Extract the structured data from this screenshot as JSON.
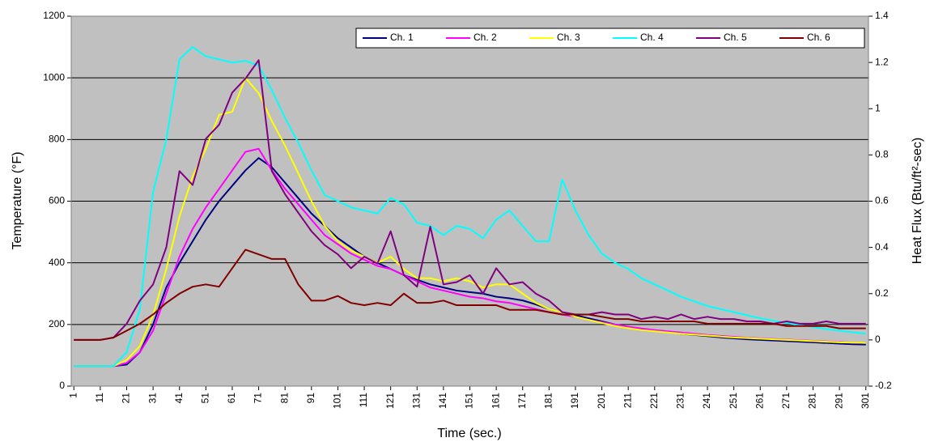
{
  "chart_data": {
    "type": "line",
    "xlabel": "Time (sec.)",
    "ylabel": "Temperature (°F)",
    "y2label": "Heat Flux (Btu/ft²-sec)",
    "x": [
      1,
      6,
      11,
      16,
      21,
      26,
      31,
      36,
      41,
      46,
      51,
      56,
      61,
      66,
      71,
      76,
      81,
      86,
      91,
      96,
      101,
      106,
      111,
      116,
      121,
      126,
      131,
      136,
      141,
      146,
      151,
      156,
      161,
      166,
      171,
      176,
      181,
      186,
      191,
      196,
      201,
      206,
      211,
      216,
      221,
      226,
      231,
      236,
      241,
      246,
      251,
      256,
      261,
      266,
      271,
      276,
      281,
      286,
      291,
      296,
      301
    ],
    "xlim": [
      0,
      302
    ],
    "xticks": [
      1,
      11,
      21,
      31,
      41,
      51,
      61,
      71,
      81,
      91,
      101,
      111,
      121,
      131,
      141,
      151,
      161,
      171,
      181,
      191,
      201,
      211,
      221,
      231,
      241,
      251,
      261,
      271,
      281,
      291,
      301
    ],
    "ylim": [
      0,
      1200
    ],
    "yticks": [
      0,
      200,
      400,
      600,
      800,
      1000,
      1200
    ],
    "y2lim": [
      -0.2,
      1.4
    ],
    "y2ticks": [
      -0.2,
      0,
      0.2,
      0.4,
      0.6,
      0.8,
      1,
      1.2,
      1.4
    ],
    "grid": true,
    "legend": "upper right",
    "series": [
      {
        "name": "Ch. 1",
        "color": "#000080",
        "values": [
          65,
          65,
          65,
          65,
          70,
          110,
          200,
          320,
          400,
          470,
          540,
          600,
          650,
          700,
          740,
          710,
          660,
          610,
          560,
          520,
          480,
          450,
          420,
          400,
          380,
          360,
          345,
          330,
          320,
          310,
          305,
          300,
          290,
          285,
          278,
          265,
          250,
          240,
          230,
          220,
          210,
          200,
          192,
          185,
          180,
          175,
          170,
          166,
          162,
          158,
          155,
          152,
          150,
          148,
          146,
          144,
          142,
          140,
          138,
          136,
          135
        ]
      },
      {
        "name": "Ch. 2",
        "color": "#ff00ff",
        "values": [
          65,
          65,
          65,
          65,
          75,
          110,
          180,
          300,
          420,
          510,
          580,
          640,
          700,
          760,
          770,
          700,
          640,
          590,
          540,
          490,
          460,
          430,
          410,
          390,
          380,
          360,
          340,
          320,
          310,
          300,
          290,
          285,
          275,
          270,
          260,
          250,
          240,
          232,
          225,
          215,
          207,
          200,
          193,
          187,
          182,
          178,
          174,
          170,
          166,
          163,
          160,
          157,
          155,
          153,
          151,
          149,
          147,
          145,
          143,
          141,
          140
        ]
      },
      {
        "name": "Ch. 3",
        "color": "#ffff00",
        "values": [
          65,
          65,
          65,
          65,
          85,
          130,
          230,
          380,
          550,
          680,
          770,
          880,
          890,
          1000,
          950,
          860,
          780,
          690,
          600,
          520,
          470,
          440,
          420,
          400,
          420,
          380,
          350,
          350,
          340,
          350,
          340,
          320,
          330,
          330,
          300,
          270,
          250,
          240,
          225,
          215,
          205,
          195,
          188,
          182,
          178,
          174,
          170,
          167,
          164,
          161,
          158,
          156,
          154,
          152,
          150,
          148,
          146,
          144,
          142,
          141,
          140
        ]
      },
      {
        "name": "Ch. 4",
        "color": "#00ffff",
        "values": [
          65,
          65,
          65,
          65,
          110,
          250,
          630,
          800,
          1060,
          1100,
          1070,
          1060,
          1050,
          1055,
          1040,
          960,
          870,
          790,
          700,
          620,
          600,
          580,
          570,
          560,
          610,
          590,
          530,
          520,
          490,
          520,
          510,
          480,
          540,
          570,
          520,
          470,
          470,
          670,
          570,
          490,
          430,
          400,
          380,
          350,
          330,
          310,
          290,
          275,
          260,
          250,
          240,
          230,
          220,
          212,
          205,
          198,
          192,
          185,
          180,
          175,
          170
        ]
      },
      {
        "name": "Ch. 5",
        "color": "#800080",
        "axis": "y2",
        "values": [
          0,
          0,
          0,
          0.01,
          0.07,
          0.17,
          0.24,
          0.4,
          0.73,
          0.67,
          0.87,
          0.93,
          1.07,
          1.13,
          1.21,
          0.73,
          0.63,
          0.55,
          0.47,
          0.41,
          0.37,
          0.31,
          0.36,
          0.33,
          0.47,
          0.28,
          0.23,
          0.49,
          0.24,
          0.25,
          0.28,
          0.2,
          0.31,
          0.24,
          0.25,
          0.2,
          0.17,
          0.12,
          0.11,
          0.11,
          0.12,
          0.11,
          0.11,
          0.09,
          0.1,
          0.09,
          0.11,
          0.09,
          0.1,
          0.09,
          0.09,
          0.08,
          0.08,
          0.07,
          0.08,
          0.07,
          0.07,
          0.08,
          0.07,
          0.07,
          0.07
        ]
      },
      {
        "name": "Ch. 6",
        "color": "#800000",
        "axis": "y2",
        "values": [
          0,
          0,
          0,
          0.01,
          0.04,
          0.07,
          0.11,
          0.16,
          0.2,
          0.23,
          0.24,
          0.23,
          0.31,
          0.39,
          0.37,
          0.35,
          0.35,
          0.24,
          0.17,
          0.17,
          0.19,
          0.16,
          0.15,
          0.16,
          0.15,
          0.2,
          0.16,
          0.16,
          0.17,
          0.15,
          0.15,
          0.15,
          0.15,
          0.13,
          0.13,
          0.13,
          0.12,
          0.11,
          0.11,
          0.11,
          0.1,
          0.09,
          0.09,
          0.08,
          0.08,
          0.08,
          0.08,
          0.08,
          0.07,
          0.07,
          0.07,
          0.07,
          0.07,
          0.07,
          0.06,
          0.06,
          0.06,
          0.06,
          0.05,
          0.05,
          0.05
        ]
      }
    ]
  }
}
